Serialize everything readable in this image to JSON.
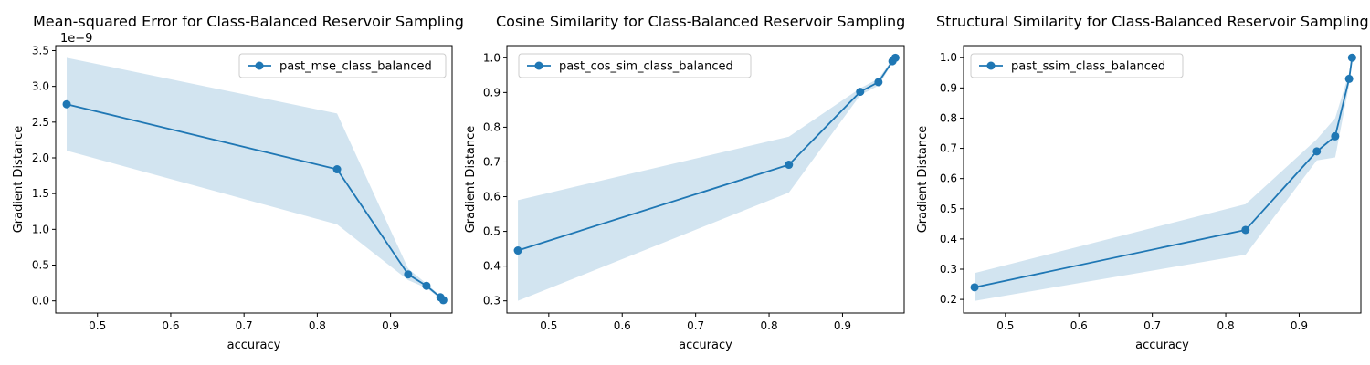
{
  "chart_data": [
    {
      "type": "line",
      "title": "Mean-squared Error for Class-Balanced Reservoir Sampling",
      "xlabel": "accuracy",
      "ylabel": "Gradient Distance",
      "y_scale_label": "1e−9",
      "xlim": [
        0.443,
        0.984
      ],
      "ylim": [
        -0.17,
        3.57
      ],
      "x_ticks": [
        0.5,
        0.6,
        0.7,
        0.8,
        0.9
      ],
      "x_tick_labels": [
        "0.5",
        "0.6",
        "0.7",
        "0.8",
        "0.9"
      ],
      "y_ticks": [
        0.0,
        0.5,
        1.0,
        1.5,
        2.0,
        2.5,
        3.0,
        3.5
      ],
      "y_tick_labels": [
        "0.0",
        "0.5",
        "1.0",
        "1.5",
        "2.0",
        "2.5",
        "3.0",
        "3.5"
      ],
      "legend_position": "top-right",
      "grid": false,
      "series": [
        {
          "name": "past_mse_class_balanced",
          "color": "#1f77b4",
          "band_color": "#1f77b4",
          "x": [
            0.458,
            0.827,
            0.924,
            0.949,
            0.968,
            0.972
          ],
          "y": [
            2.75,
            1.84,
            0.37,
            0.21,
            0.05,
            0.01
          ],
          "band_lower": [
            2.1,
            1.07,
            0.29,
            0.18,
            0.03,
            0.0
          ],
          "band_upper": [
            3.4,
            2.62,
            0.45,
            0.24,
            0.07,
            0.02
          ]
        }
      ]
    },
    {
      "type": "line",
      "title": "Cosine Similarity for Class-Balanced Reservoir Sampling",
      "xlabel": "accuracy",
      "ylabel": "Gradient Distance",
      "xlim": [
        0.443,
        0.984
      ],
      "ylim": [
        0.265,
        1.035
      ],
      "x_ticks": [
        0.5,
        0.6,
        0.7,
        0.8,
        0.9
      ],
      "x_tick_labels": [
        "0.5",
        "0.6",
        "0.7",
        "0.8",
        "0.9"
      ],
      "y_ticks": [
        0.3,
        0.4,
        0.5,
        0.6,
        0.7,
        0.8,
        0.9,
        1.0
      ],
      "y_tick_labels": [
        "0.3",
        "0.4",
        "0.5",
        "0.6",
        "0.7",
        "0.8",
        "0.9",
        "1.0"
      ],
      "legend_position": "top-left",
      "grid": false,
      "series": [
        {
          "name": "past_cos_sim_class_balanced",
          "color": "#1f77b4",
          "band_color": "#1f77b4",
          "x": [
            0.458,
            0.827,
            0.924,
            0.949,
            0.968,
            0.972
          ],
          "y": [
            0.445,
            0.692,
            0.902,
            0.93,
            0.99,
            1.0
          ],
          "band_lower": [
            0.3,
            0.612,
            0.892,
            0.92,
            0.985,
            0.998
          ],
          "band_upper": [
            0.59,
            0.773,
            0.912,
            0.94,
            0.995,
            1.002
          ]
        }
      ]
    },
    {
      "type": "line",
      "title": "Structural Similarity for Class-Balanced Reservoir Sampling",
      "xlabel": "accuracy",
      "ylabel": "Gradient Distance",
      "xlim": [
        0.443,
        0.984
      ],
      "ylim": [
        0.155,
        1.04
      ],
      "x_ticks": [
        0.5,
        0.6,
        0.7,
        0.8,
        0.9
      ],
      "x_tick_labels": [
        "0.5",
        "0.6",
        "0.7",
        "0.8",
        "0.9"
      ],
      "y_ticks": [
        0.2,
        0.3,
        0.4,
        0.5,
        0.6,
        0.7,
        0.8,
        0.9,
        1.0
      ],
      "y_tick_labels": [
        "0.2",
        "0.3",
        "0.4",
        "0.5",
        "0.6",
        "0.7",
        "0.8",
        "0.9",
        "1.0"
      ],
      "legend_position": "top-left",
      "grid": false,
      "series": [
        {
          "name": "past_ssim_class_balanced",
          "color": "#1f77b4",
          "band_color": "#1f77b4",
          "x": [
            0.458,
            0.827,
            0.924,
            0.949,
            0.968,
            0.972
          ],
          "y": [
            0.24,
            0.43,
            0.69,
            0.74,
            0.93,
            1.0
          ],
          "band_lower": [
            0.195,
            0.348,
            0.66,
            0.67,
            0.91,
            1.0
          ],
          "band_upper": [
            0.287,
            0.515,
            0.73,
            0.8,
            0.95,
            1.0
          ]
        }
      ]
    }
  ]
}
